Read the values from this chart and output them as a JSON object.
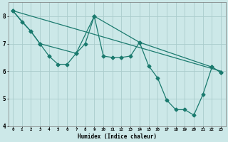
{
  "xlabel": "Humidex (Indice chaleur)",
  "bg_color": "#cce8e8",
  "grid_color": "#aacccc",
  "line_color": "#1a7a6e",
  "xlim": [
    -0.5,
    23.5
  ],
  "ylim": [
    4,
    8.5
  ],
  "xtick_labels": [
    "0",
    "1",
    "2",
    "3",
    "4",
    "5",
    "6",
    "7",
    "8",
    "9",
    "10",
    "11",
    "12",
    "13",
    "14",
    "15",
    "16",
    "17",
    "18",
    "19",
    "20",
    "21",
    "22",
    "23"
  ],
  "ytick_labels": [
    "4",
    "5",
    "6",
    "7",
    "8"
  ],
  "yticks": [
    4,
    5,
    6,
    7,
    8
  ],
  "series1_x": [
    0,
    1,
    2,
    3,
    4,
    5,
    6,
    7,
    8,
    9,
    10,
    11,
    12,
    13,
    14,
    15,
    16,
    17,
    18,
    19,
    20,
    21,
    22,
    23
  ],
  "series1_y": [
    8.2,
    7.8,
    7.45,
    7.0,
    6.55,
    6.25,
    6.25,
    6.65,
    7.0,
    8.0,
    6.55,
    6.5,
    6.5,
    6.55,
    7.05,
    6.2,
    5.75,
    4.95,
    4.6,
    4.6,
    4.4,
    5.15,
    6.15,
    5.95
  ],
  "series2_x": [
    0,
    2,
    3,
    7,
    9,
    14,
    22,
    23
  ],
  "series2_y": [
    8.2,
    7.45,
    7.0,
    6.65,
    8.0,
    7.05,
    6.15,
    5.95
  ],
  "series3_x": [
    0,
    23
  ],
  "series3_y": [
    8.2,
    6.0
  ],
  "marker_size": 2.5,
  "line_width": 0.9
}
